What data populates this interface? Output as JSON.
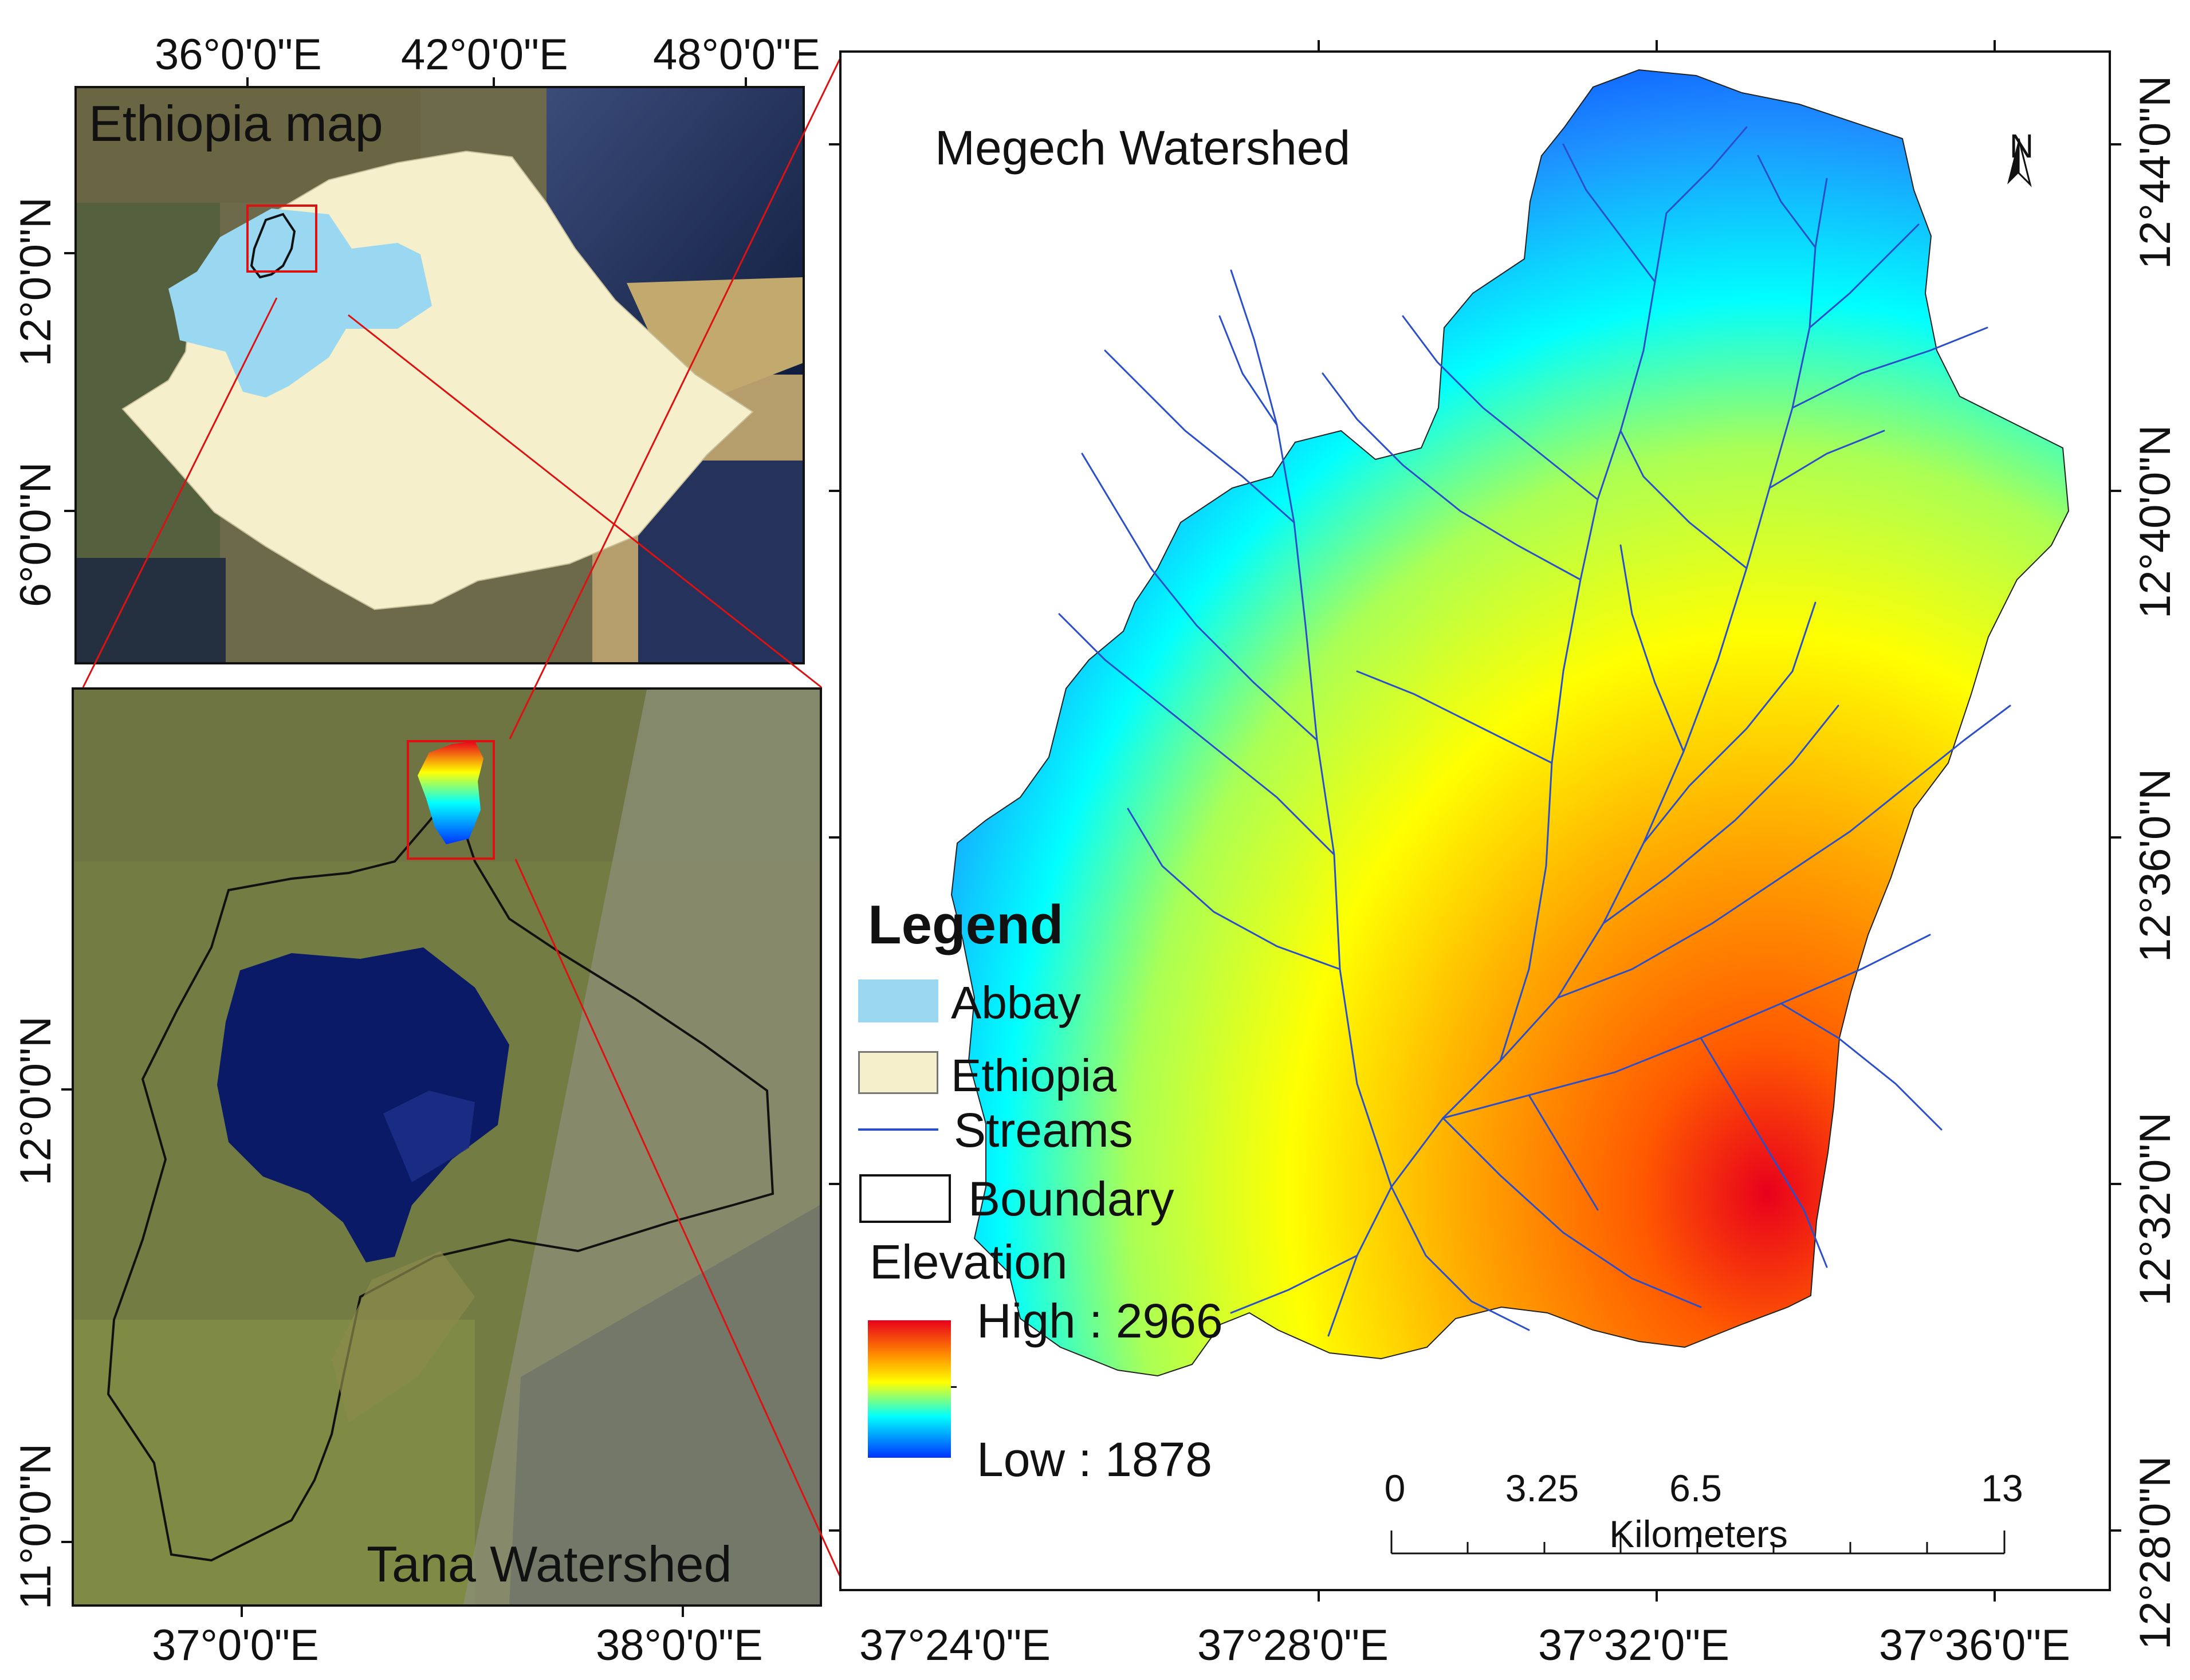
{
  "inset_ethiopia": {
    "title": "Ethiopia map",
    "top_coords": [
      "36°0'0\"E",
      "42°0'0\"E",
      "48°0'0\"E"
    ],
    "left_coords": [
      "12°0'0\"N",
      "6°0'0\"N"
    ]
  },
  "inset_tana": {
    "title": "Tana Watershed",
    "bottom_coords": [
      "37°0'0\"E",
      "38°0'0\"E"
    ],
    "left_coords": [
      "12°0'0\"N",
      "11°0'0\"N"
    ]
  },
  "main_map": {
    "title": "Megech Watershed",
    "north_label": "N",
    "bottom_coords": [
      "37°24'0\"E",
      "37°28'0\"E",
      "37°32'0\"E",
      "37°36'0\"E"
    ],
    "right_coords": [
      "12°44'0\"N",
      "12°40'0\"N",
      "12°36'0\"N",
      "12°32'0\"N",
      "12°28'0\"N"
    ]
  },
  "legend": {
    "title": "Legend",
    "abbay": "Abbay",
    "ethiopia": "Ethiopia",
    "streams": "Streams",
    "boundary": "Boundary",
    "elevation": "Elevation",
    "high": "High : 2966",
    "low": "Low : 1878",
    "colors": {
      "abbay": "#99d8f0",
      "ethiopia": "#f6efcc",
      "streams": "#2a4fc9",
      "boundary": "#111111",
      "elevation_ramp": [
        "#e8001c",
        "#ff8c00",
        "#ffff00",
        "#00ffff",
        "#0033ff"
      ]
    }
  },
  "scale_bar": {
    "ticks": [
      "0",
      "3.25",
      "6.5",
      "13"
    ],
    "unit": "Kilometers"
  }
}
